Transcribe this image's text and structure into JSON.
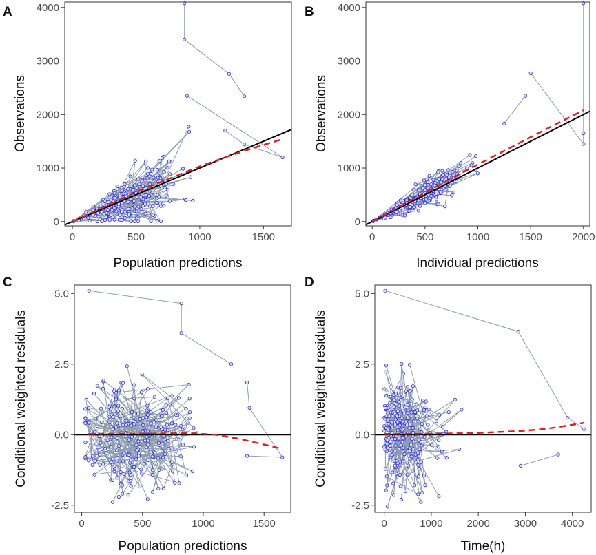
{
  "chart_data": [
    {
      "panel": "A",
      "type": "scatter",
      "title": "",
      "xlabel": "Population predictions",
      "ylabel": "Observations",
      "xlim": [
        -60,
        1720
      ],
      "ylim": [
        -80,
        4100
      ],
      "xticks": [
        0,
        500,
        1000,
        1500
      ],
      "yticks": [
        0,
        1000,
        2000,
        3000,
        4000
      ],
      "xtick_labels": [
        "0",
        "500",
        "1000",
        "1500"
      ],
      "ytick_labels": [
        "0",
        "1000",
        "2000",
        "3000",
        "4000"
      ],
      "reference_line": {
        "name": "line of identity",
        "x": [
          -60,
          1720
        ],
        "y": [
          -60,
          1720
        ]
      },
      "trend_line": {
        "name": "loess trend",
        "x": [
          0,
          200,
          400,
          600,
          800,
          1000,
          1200,
          1400,
          1650
        ],
        "y": [
          0,
          220,
          440,
          650,
          840,
          1030,
          1200,
          1360,
          1540
        ]
      },
      "highlight_points": [
        {
          "x": 880,
          "y": 4080
        },
        {
          "x": 880,
          "y": 3400
        },
        {
          "x": 1230,
          "y": 2760
        },
        {
          "x": 1350,
          "y": 2340
        },
        {
          "x": 900,
          "y": 2350
        },
        {
          "x": 1650,
          "y": 1200
        },
        {
          "x": 1350,
          "y": 1440
        },
        {
          "x": 1200,
          "y": 1700
        }
      ],
      "series": [
        {
          "name": "observations",
          "color": "#2b2bd4",
          "x": [],
          "y": []
        }
      ]
    },
    {
      "panel": "B",
      "type": "scatter",
      "title": "",
      "xlabel": "Individual predictions",
      "ylabel": "Observations",
      "xlim": [
        -60,
        2060
      ],
      "ylim": [
        -80,
        4100
      ],
      "xticks": [
        0,
        500,
        1000,
        1500,
        2000
      ],
      "yticks": [
        0,
        1000,
        2000,
        3000,
        4000
      ],
      "xtick_labels": [
        "0",
        "500",
        "1000",
        "1500",
        "2000"
      ],
      "ytick_labels": [
        "0",
        "1000",
        "2000",
        "3000",
        "4000"
      ],
      "reference_line": {
        "name": "line of identity",
        "x": [
          -60,
          2060
        ],
        "y": [
          -60,
          2060
        ]
      },
      "trend_line": {
        "name": "loess trend",
        "x": [
          0,
          400,
          800,
          1200,
          1600,
          2000
        ],
        "y": [
          0,
          430,
          860,
          1270,
          1680,
          2080
        ]
      },
      "highlight_points": [
        {
          "x": 2000,
          "y": 4080
        },
        {
          "x": 2000,
          "y": 1650
        },
        {
          "x": 2000,
          "y": 1450
        },
        {
          "x": 1500,
          "y": 2770
        },
        {
          "x": 1450,
          "y": 2350
        },
        {
          "x": 1250,
          "y": 1830
        }
      ],
      "series": [
        {
          "name": "observations",
          "color": "#2b2bd4",
          "x": [],
          "y": []
        }
      ]
    },
    {
      "panel": "C",
      "type": "scatter",
      "title": "",
      "xlabel": "Population predictions",
      "ylabel": "Conditional weighted residuals",
      "xlim": [
        -60,
        1720
      ],
      "ylim": [
        -2.75,
        5.3
      ],
      "xticks": [
        0,
        500,
        1000,
        1500
      ],
      "yticks": [
        -2.5,
        0,
        2.5,
        5
      ],
      "xtick_labels": [
        "0",
        "500",
        "1000",
        "1500"
      ],
      "ytick_labels": [
        "-2.5",
        "0.0",
        "2.5",
        "5.0"
      ],
      "reference_line": {
        "name": "zero line",
        "x": [
          -60,
          1720
        ],
        "y": [
          0,
          0
        ]
      },
      "trend_line": {
        "name": "loess trend",
        "x": [
          50,
          300,
          600,
          900,
          1100,
          1300,
          1500,
          1650
        ],
        "y": [
          0.02,
          0.03,
          0.04,
          0.05,
          0.0,
          -0.15,
          -0.35,
          -0.5
        ]
      },
      "highlight_points": [
        {
          "x": 60,
          "y": 5.1
        },
        {
          "x": 820,
          "y": 4.65
        },
        {
          "x": 820,
          "y": 3.6
        },
        {
          "x": 1230,
          "y": 2.5
        },
        {
          "x": 1360,
          "y": 1.85
        },
        {
          "x": 1380,
          "y": 0.95
        },
        {
          "x": 1650,
          "y": -0.8
        },
        {
          "x": 1360,
          "y": -0.75
        }
      ],
      "series": [
        {
          "name": "residuals",
          "color": "#2b2bd4",
          "x": [],
          "y": []
        }
      ]
    },
    {
      "panel": "D",
      "type": "scatter",
      "title": "",
      "xlabel": "Time(h)",
      "ylabel": "Conditional weighted residuals",
      "xlim": [
        -200,
        4400
      ],
      "ylim": [
        -2.75,
        5.3
      ],
      "xticks": [
        0,
        1000,
        2000,
        3000,
        4000
      ],
      "yticks": [
        -2.5,
        0,
        2.5,
        5
      ],
      "xtick_labels": [
        "0",
        "1000",
        "2000",
        "3000",
        "4000"
      ],
      "ytick_labels": [
        "-2.5",
        "0.0",
        "2.5",
        "5.0"
      ],
      "reference_line": {
        "name": "zero line",
        "x": [
          -200,
          4400
        ],
        "y": [
          0,
          0
        ]
      },
      "trend_line": {
        "name": "loess trend",
        "x": [
          0,
          1000,
          2000,
          3000,
          3500,
          4000,
          4250
        ],
        "y": [
          0.02,
          0.03,
          0.06,
          0.14,
          0.22,
          0.35,
          0.42
        ]
      },
      "highlight_points": [
        {
          "x": 20,
          "y": 5.1
        },
        {
          "x": 2850,
          "y": 3.65
        },
        {
          "x": 3900,
          "y": 0.6
        },
        {
          "x": 4250,
          "y": 0.2
        },
        {
          "x": 3700,
          "y": -0.7
        },
        {
          "x": 2900,
          "y": -1.1
        }
      ],
      "series": [
        {
          "name": "residuals",
          "color": "#2b2bd4",
          "x": [],
          "y": []
        }
      ]
    }
  ]
}
